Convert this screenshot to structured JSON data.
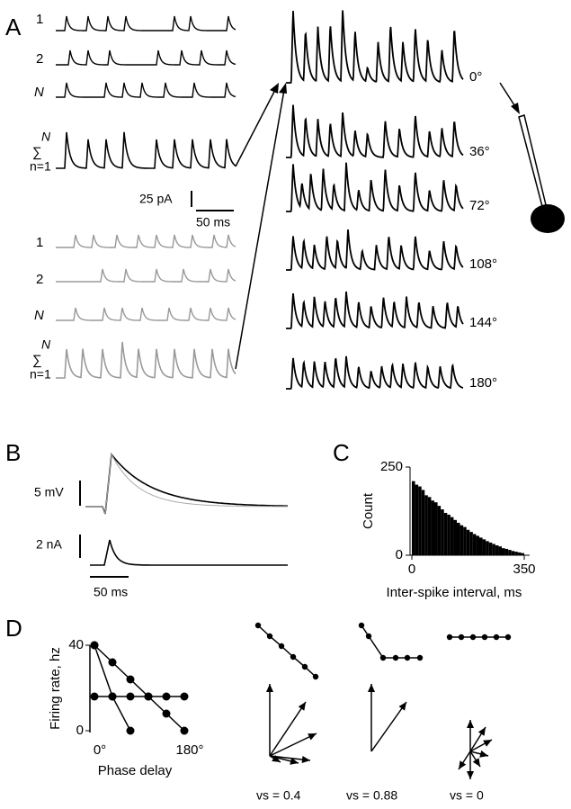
{
  "panel_a": {
    "label": "A",
    "trace_labels": [
      "1",
      "2",
      "N"
    ],
    "sum_label": {
      "symbol": "∑",
      "top": "N",
      "bottom": "n=1"
    },
    "scale": {
      "current": "25 pA",
      "time": "50 ms"
    },
    "phases": [
      "0°",
      "36°",
      "72°",
      "108°",
      "144°",
      "180°"
    ]
  },
  "panel_b": {
    "label": "B",
    "voltage_scale": "5 mV",
    "current_scale": "2 nA",
    "time_scale": "50 ms"
  },
  "panel_c": {
    "label": "C"
  },
  "panel_d": {
    "label": "D",
    "vs_labels": [
      "vs = 0.4",
      "vs = 0.88",
      "vs = 0"
    ]
  },
  "chart_data": [
    {
      "type": "histogram",
      "y_label": "Count",
      "x_label": "Inter-spike interval, ms",
      "color": "#000000",
      "bins": [
        0,
        10,
        20,
        30,
        40,
        50,
        60,
        70,
        80,
        90,
        100,
        110,
        120,
        130,
        140,
        150,
        160,
        170,
        180,
        190,
        200,
        210,
        220,
        230,
        240,
        250,
        260,
        270,
        280,
        290,
        300,
        310,
        320,
        330,
        340,
        350
      ],
      "values": [
        210,
        200,
        195,
        185,
        170,
        165,
        155,
        150,
        140,
        130,
        120,
        115,
        108,
        100,
        92,
        85,
        80,
        72,
        66,
        60,
        55,
        50,
        45,
        40,
        36,
        32,
        28,
        25,
        20,
        18,
        15,
        12,
        10,
        8,
        6
      ],
      "xlim": [
        0,
        350
      ],
      "ylim": [
        0,
        250
      ],
      "xticks": [
        0,
        350
      ],
      "yticks": [
        0,
        250
      ]
    },
    {
      "type": "line",
      "y_label": "Firing rate, hz",
      "x_label": "Phase delay",
      "color": "#000000",
      "x": [
        0,
        36,
        72,
        108,
        144,
        180
      ],
      "series": [
        {
          "values": [
            40,
            32,
            24,
            16,
            8,
            0
          ]
        },
        {
          "values": [
            16,
            16,
            16,
            16,
            16,
            16
          ]
        },
        {
          "values": [
            40,
            16,
            0,
            null,
            null,
            null
          ]
        }
      ],
      "xlim": [
        0,
        180
      ],
      "ylim": [
        0,
        40
      ],
      "xticks": [
        {
          "value": 0,
          "label": "0°"
        },
        {
          "value": 180,
          "label": "180°"
        }
      ],
      "yticks": [
        0,
        40
      ]
    }
  ]
}
